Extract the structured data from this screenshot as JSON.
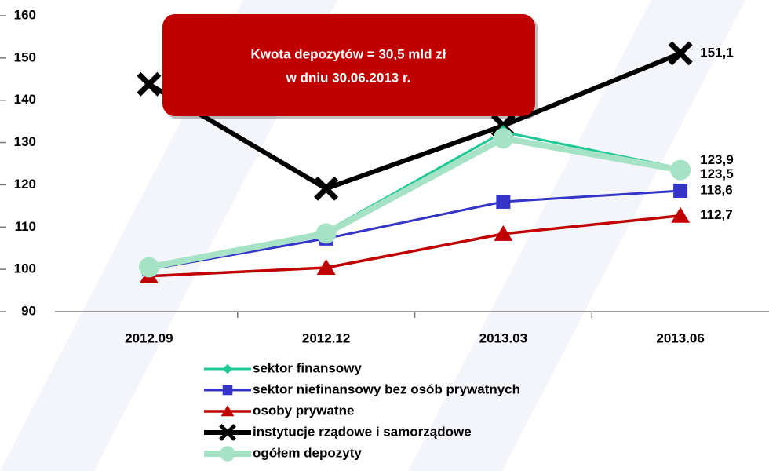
{
  "chart_data": {
    "type": "line",
    "annotation": [
      "Kwota depozytów  = 30,5 mld zł",
      "w dniu 30.06.2013 r."
    ],
    "categories": [
      "2012.09",
      "2012.12",
      "2013.03",
      "2013.06"
    ],
    "ylim": [
      90,
      160
    ],
    "yticks": [
      90,
      100,
      110,
      120,
      130,
      140,
      150,
      160
    ],
    "grid": false,
    "series": [
      {
        "name": "sektor finansowy",
        "color": "#1fc795",
        "marker": "diamond",
        "values": [
          100.5,
          109,
          132.5,
          123.9
        ],
        "value_labels": [
          null,
          null,
          null,
          "123,9"
        ]
      },
      {
        "name": "sektor niefinansowy bez osób prywatnych",
        "color": "#3434c8",
        "marker": "square",
        "values": [
          100,
          107.3,
          116,
          118.6
        ],
        "value_labels": [
          null,
          null,
          null,
          "118,6"
        ]
      },
      {
        "name": "osoby prywatne",
        "color": "#c00000",
        "marker": "triangle",
        "values": [
          98.4,
          100.4,
          108.4,
          112.7
        ],
        "value_labels": [
          null,
          null,
          null,
          "112,7"
        ]
      },
      {
        "name": "instytucje rządowe i samorządowe",
        "color": "#000000",
        "marker": "x",
        "values": [
          143.8,
          119.1,
          134,
          151.1
        ],
        "value_labels": [
          null,
          null,
          null,
          "151,1"
        ]
      },
      {
        "name": "ogółem depozyty",
        "color": "#a6e3c6",
        "marker": "circle",
        "values": [
          100.5,
          108.5,
          131,
          123.5
        ],
        "value_labels": [
          null,
          null,
          null,
          "123,5"
        ]
      }
    ]
  }
}
